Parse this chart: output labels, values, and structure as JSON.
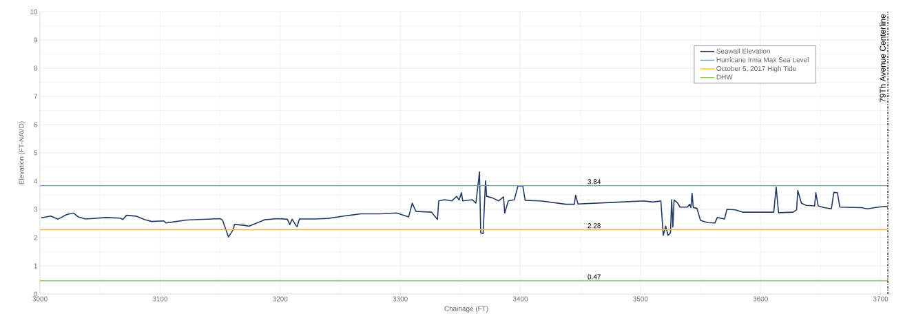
{
  "chart_data": {
    "type": "line",
    "xlabel": "Chainage (FT)",
    "ylabel": "Elevation (FT-NAVD)",
    "xlim": [
      3000,
      3710
    ],
    "ylim": [
      0,
      10
    ],
    "xticks": [
      3000,
      3100,
      3200,
      3300,
      3400,
      3500,
      3600,
      3700
    ],
    "yticks": [
      0,
      1,
      2,
      3,
      4,
      5,
      6,
      7,
      8,
      9,
      10
    ],
    "grid": true,
    "legend": "top right",
    "marker": "none",
    "line_style": "solid",
    "series": [
      {
        "name": "Seawall Elevation",
        "color": "#203864",
        "x": [
          3001,
          3009,
          3015,
          3022,
          3028,
          3032,
          3038,
          3055,
          3067,
          3069,
          3072,
          3080,
          3087,
          3093,
          3103,
          3105,
          3122,
          3150,
          3152,
          3157,
          3161,
          3162,
          3164,
          3171,
          3174,
          3187,
          3198,
          3206,
          3208,
          3210,
          3214,
          3216,
          3229,
          3240,
          3253,
          3267,
          3284,
          3297,
          3307,
          3310,
          3313,
          3326,
          3331,
          3332,
          3337,
          3343,
          3347,
          3349,
          3351,
          3352,
          3360,
          3363,
          3366,
          3367,
          3369,
          3371,
          3372,
          3377,
          3382,
          3386,
          3387,
          3390,
          3395,
          3398,
          3402,
          3404,
          3417,
          3438,
          3445,
          3446,
          3448,
          3474,
          3503,
          3510,
          3517,
          3519,
          3521,
          3523,
          3525,
          3526,
          3527,
          3528,
          3531,
          3533,
          3539,
          3541,
          3542,
          3543,
          3544,
          3547,
          3550,
          3556,
          3562,
          3564,
          3570,
          3572,
          3579,
          3585,
          3611,
          3613,
          3615,
          3627,
          3630,
          3631,
          3634,
          3638,
          3645,
          3646,
          3648,
          3653,
          3659,
          3661,
          3664,
          3666,
          3684,
          3689,
          3695,
          3704,
          3706
        ],
        "values": [
          2.7,
          2.76,
          2.65,
          2.81,
          2.87,
          2.73,
          2.66,
          2.71,
          2.69,
          2.64,
          2.79,
          2.76,
          2.64,
          2.57,
          2.59,
          2.52,
          2.62,
          2.67,
          2.62,
          2.02,
          2.29,
          2.47,
          2.46,
          2.43,
          2.4,
          2.63,
          2.67,
          2.65,
          2.46,
          2.65,
          2.38,
          2.66,
          2.66,
          2.68,
          2.76,
          2.84,
          2.84,
          2.87,
          2.73,
          3.22,
          2.93,
          2.9,
          2.64,
          3.3,
          3.34,
          3.3,
          3.46,
          3.33,
          3.59,
          3.3,
          3.34,
          3.22,
          4.33,
          2.17,
          2.14,
          4.01,
          3.46,
          3.4,
          3.3,
          3.44,
          2.87,
          3.3,
          3.34,
          3.83,
          3.83,
          3.32,
          3.3,
          3.18,
          3.18,
          3.5,
          3.19,
          3.24,
          3.3,
          3.26,
          3.3,
          2.08,
          2.41,
          2.08,
          2.16,
          3.34,
          2.37,
          3.33,
          3.22,
          3.08,
          3.08,
          3.18,
          3.06,
          3.57,
          3.06,
          3.04,
          2.61,
          2.53,
          2.52,
          2.71,
          2.66,
          3.0,
          2.98,
          2.9,
          2.9,
          3.79,
          2.88,
          2.9,
          2.98,
          3.67,
          3.22,
          3.14,
          3.12,
          3.59,
          3.12,
          3.06,
          3.02,
          3.6,
          3.59,
          3.08,
          3.06,
          3.02,
          3.06,
          3.11,
          3.08
        ]
      },
      {
        "name": "Hurricane Irma Max Sea Level",
        "color": "#2eaee6",
        "x": [
          3000,
          3706
        ],
        "values": [
          3.84,
          3.84
        ]
      },
      {
        "name": "October 5, 2017 High Tide",
        "color": "#ffc000",
        "x": [
          3000,
          3706
        ],
        "values": [
          2.28,
          2.28
        ]
      },
      {
        "name": "DHW",
        "color": "#8fc953",
        "x": [
          3000,
          3706
        ],
        "values": [
          0.47,
          0.47
        ]
      }
    ],
    "annotations": [
      {
        "text": "3.84",
        "y": 3.84
      },
      {
        "text": "2.28",
        "y": 2.28
      },
      {
        "text": "0.47",
        "y": 0.47
      }
    ],
    "ref_lines": [
      {
        "axis": "x",
        "value": 3706,
        "label": "79Th Avenue Centerline",
        "color": "#000000",
        "line_style": "dashdot"
      }
    ]
  }
}
